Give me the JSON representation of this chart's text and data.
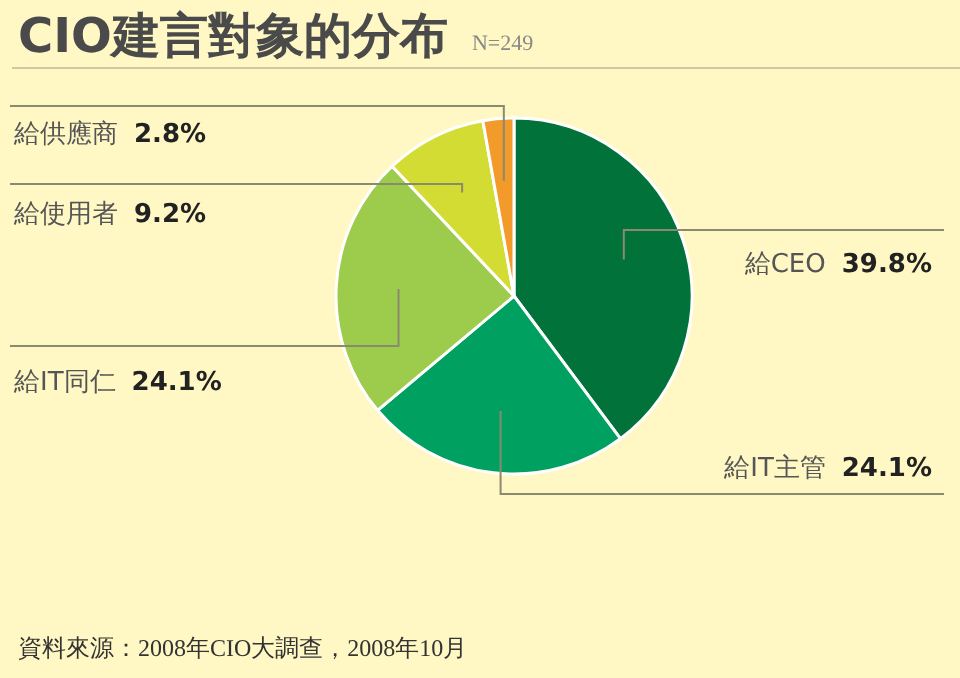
{
  "chart_data": {
    "type": "pie",
    "title": "CIO建言對象的分布",
    "subtitle": "N=249",
    "categories": [
      "給CEO",
      "給IT主管",
      "給IT同仁",
      "給使用者",
      "給供應商"
    ],
    "values": [
      39.8,
      24.1,
      24.1,
      9.2,
      2.8
    ],
    "value_labels": [
      "39.8%",
      "24.1%",
      "24.1%",
      "9.2%",
      "2.8%"
    ],
    "colors": [
      "#00723a",
      "#00a160",
      "#9dcb4b",
      "#d2dc32",
      "#f29a2a"
    ],
    "annotations": [
      "資料來源：2008年CIO大調查，2008年10月"
    ]
  }
}
